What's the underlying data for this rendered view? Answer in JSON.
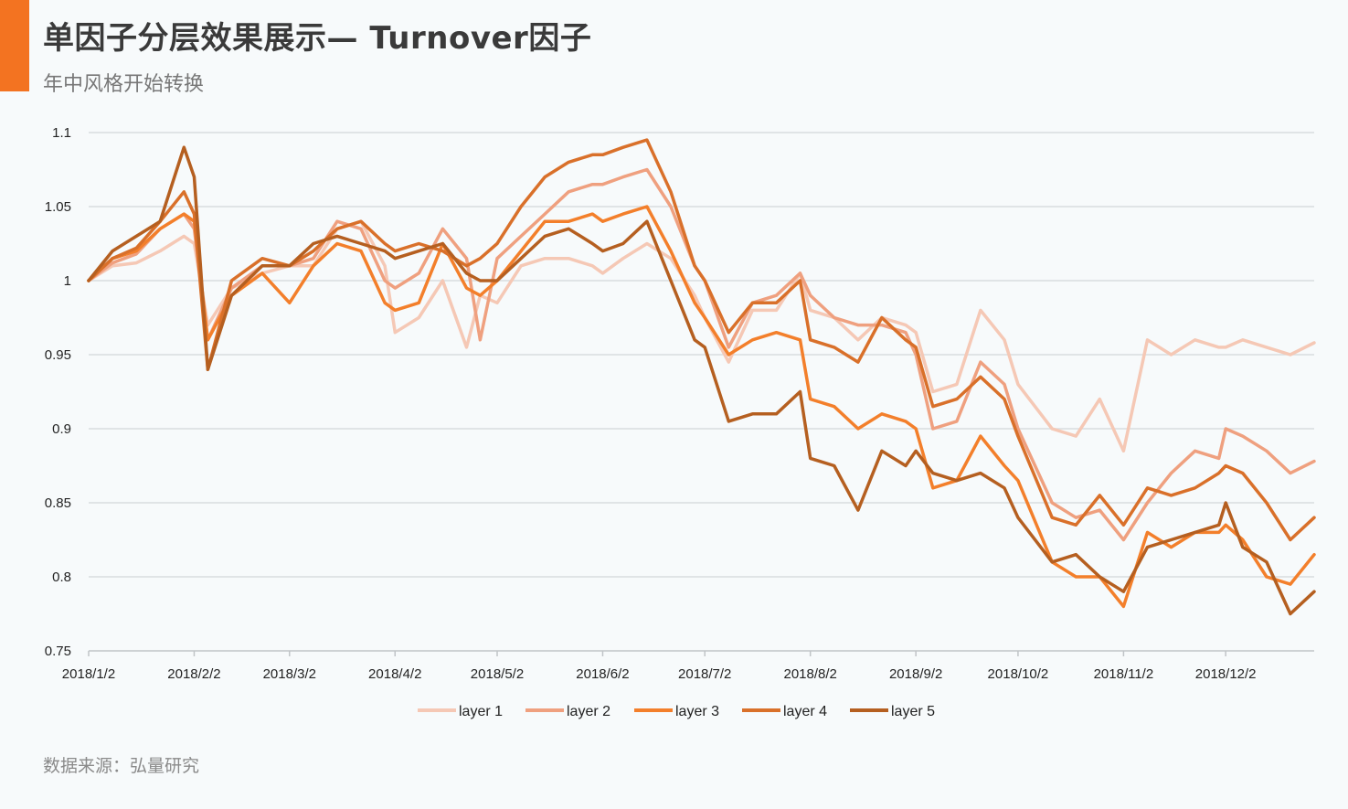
{
  "header": {
    "title": "单因子分层效果展示— Turnover因子",
    "subtitle": "年中风格开始转换",
    "accent_color": "#f37321"
  },
  "footer": {
    "source": "数据来源：弘量研究"
  },
  "chart_data": {
    "type": "line",
    "title": "",
    "xlabel": "",
    "ylabel": "",
    "ylim": [
      0.75,
      1.1
    ],
    "yticks": [
      "1.1",
      "1.05",
      "1",
      "0.95",
      "0.9",
      "0.85",
      "0.8",
      "0.75"
    ],
    "x_ticks": [
      "2018/1/2",
      "2018/2/2",
      "2018/3/2",
      "2018/4/2",
      "2018/5/2",
      "2018/6/2",
      "2018/7/2",
      "2018/8/2",
      "2018/9/2",
      "2018/10/2",
      "2018/11/2",
      "2018/12/2"
    ],
    "grid": true,
    "legend_position": "bottom",
    "x": [
      "2018/1/2",
      "2018/1/9",
      "2018/1/16",
      "2018/1/23",
      "2018/1/30",
      "2018/2/2",
      "2018/2/6",
      "2018/2/13",
      "2018/2/22",
      "2018/3/2",
      "2018/3/9",
      "2018/3/16",
      "2018/3/23",
      "2018/3/30",
      "2018/4/2",
      "2018/4/9",
      "2018/4/16",
      "2018/4/23",
      "2018/4/27",
      "2018/5/2",
      "2018/5/9",
      "2018/5/16",
      "2018/5/23",
      "2018/5/30",
      "2018/6/2",
      "2018/6/8",
      "2018/6/15",
      "2018/6/22",
      "2018/6/29",
      "2018/7/2",
      "2018/7/9",
      "2018/7/16",
      "2018/7/23",
      "2018/7/30",
      "2018/8/2",
      "2018/8/9",
      "2018/8/16",
      "2018/8/23",
      "2018/8/30",
      "2018/9/2",
      "2018/9/7",
      "2018/9/14",
      "2018/9/21",
      "2018/9/28",
      "2018/10/2",
      "2018/10/12",
      "2018/10/19",
      "2018/10/26",
      "2018/11/2",
      "2018/11/9",
      "2018/11/16",
      "2018/11/23",
      "2018/11/30",
      "2018/12/2",
      "2018/12/7",
      "2018/12/14",
      "2018/12/21",
      "2018/12/28"
    ],
    "series": [
      {
        "name": "layer 1",
        "color": "#f5c8b5",
        "values": [
          1.0,
          1.01,
          1.012,
          1.02,
          1.03,
          1.025,
          0.97,
          0.995,
          1.005,
          1.01,
          1.01,
          1.035,
          1.04,
          1.01,
          0.965,
          0.975,
          1.0,
          0.955,
          0.99,
          0.985,
          1.01,
          1.015,
          1.015,
          1.01,
          1.005,
          1.015,
          1.025,
          1.015,
          0.99,
          0.975,
          0.945,
          0.98,
          0.98,
          1.005,
          0.98,
          0.975,
          0.96,
          0.975,
          0.97,
          0.965,
          0.925,
          0.93,
          0.98,
          0.96,
          0.93,
          0.9,
          0.895,
          0.92,
          0.885,
          0.96,
          0.95,
          0.96,
          0.955,
          0.955,
          0.96,
          0.955,
          0.95,
          0.958
        ]
      },
      {
        "name": "layer 2",
        "color": "#efa07f",
        "values": [
          1.0,
          1.012,
          1.018,
          1.035,
          1.045,
          1.035,
          0.96,
          0.995,
          1.01,
          1.01,
          1.015,
          1.04,
          1.035,
          1.0,
          0.995,
          1.005,
          1.035,
          1.015,
          0.96,
          1.015,
          1.03,
          1.045,
          1.06,
          1.065,
          1.065,
          1.07,
          1.075,
          1.05,
          1.01,
          1.0,
          0.955,
          0.985,
          0.99,
          1.005,
          0.99,
          0.975,
          0.97,
          0.97,
          0.965,
          0.95,
          0.9,
          0.905,
          0.945,
          0.93,
          0.9,
          0.85,
          0.84,
          0.845,
          0.825,
          0.85,
          0.87,
          0.885,
          0.88,
          0.9,
          0.895,
          0.885,
          0.87,
          0.878
        ]
      },
      {
        "name": "layer 3",
        "color": "#f37f2b",
        "values": [
          1.0,
          1.015,
          1.02,
          1.035,
          1.045,
          1.04,
          0.96,
          0.99,
          1.005,
          0.985,
          1.01,
          1.025,
          1.02,
          0.985,
          0.98,
          0.985,
          1.025,
          0.995,
          0.99,
          1.0,
          1.02,
          1.04,
          1.04,
          1.045,
          1.04,
          1.045,
          1.05,
          1.02,
          0.985,
          0.975,
          0.95,
          0.96,
          0.965,
          0.96,
          0.92,
          0.915,
          0.9,
          0.91,
          0.905,
          0.9,
          0.86,
          0.865,
          0.895,
          0.875,
          0.865,
          0.81,
          0.8,
          0.8,
          0.78,
          0.83,
          0.82,
          0.83,
          0.83,
          0.835,
          0.825,
          0.8,
          0.795,
          0.815
        ]
      },
      {
        "name": "layer 4",
        "color": "#d9702a",
        "values": [
          1.0,
          1.015,
          1.022,
          1.04,
          1.06,
          1.045,
          0.94,
          1.0,
          1.015,
          1.01,
          1.02,
          1.035,
          1.04,
          1.025,
          1.02,
          1.025,
          1.02,
          1.01,
          1.015,
          1.025,
          1.05,
          1.07,
          1.08,
          1.085,
          1.085,
          1.09,
          1.095,
          1.06,
          1.01,
          1.0,
          0.965,
          0.985,
          0.985,
          1.0,
          0.96,
          0.955,
          0.945,
          0.975,
          0.96,
          0.955,
          0.915,
          0.92,
          0.935,
          0.92,
          0.895,
          0.84,
          0.835,
          0.855,
          0.835,
          0.86,
          0.855,
          0.86,
          0.87,
          0.875,
          0.87,
          0.85,
          0.825,
          0.84
        ]
      },
      {
        "name": "layer 5",
        "color": "#b55f20",
        "values": [
          1.0,
          1.02,
          1.03,
          1.04,
          1.09,
          1.07,
          0.94,
          0.99,
          1.01,
          1.01,
          1.025,
          1.03,
          1.025,
          1.02,
          1.015,
          1.02,
          1.025,
          1.005,
          1.0,
          1.0,
          1.015,
          1.03,
          1.035,
          1.025,
          1.02,
          1.025,
          1.04,
          1.0,
          0.96,
          0.955,
          0.905,
          0.91,
          0.91,
          0.925,
          0.88,
          0.875,
          0.845,
          0.885,
          0.875,
          0.885,
          0.87,
          0.865,
          0.87,
          0.86,
          0.84,
          0.81,
          0.815,
          0.8,
          0.79,
          0.82,
          0.825,
          0.83,
          0.835,
          0.85,
          0.82,
          0.81,
          0.775,
          0.79
        ]
      }
    ]
  }
}
